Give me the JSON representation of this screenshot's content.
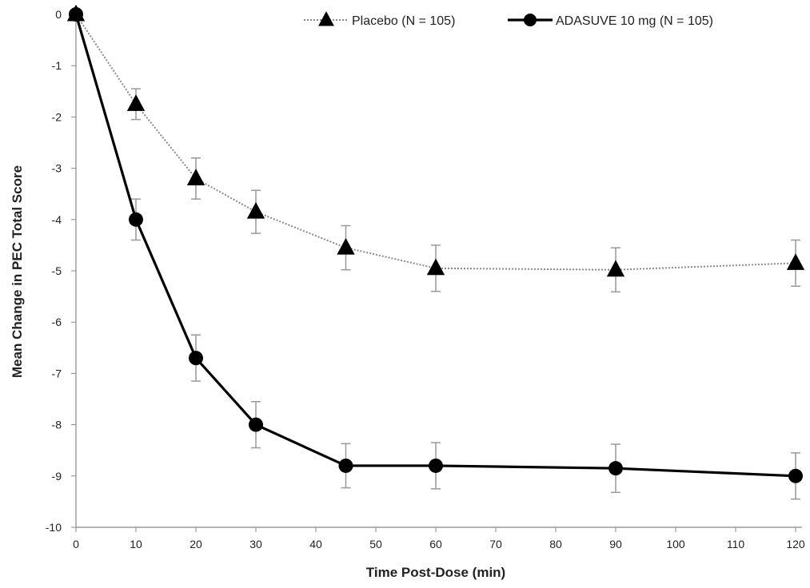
{
  "chart_data": {
    "type": "line",
    "title": "",
    "xlabel": "Time Post-Dose (min)",
    "ylabel": "Mean Change in PEC Total Score",
    "xlim": [
      0,
      120
    ],
    "ylim": [
      -10,
      0
    ],
    "x_ticks": [
      0,
      10,
      20,
      30,
      40,
      50,
      60,
      70,
      80,
      90,
      100,
      110,
      120
    ],
    "y_ticks": [
      0,
      -1,
      -2,
      -3,
      -4,
      -5,
      -6,
      -7,
      -8,
      -9,
      -10
    ],
    "grid": false,
    "legend_position": "top",
    "x": [
      0,
      10,
      20,
      30,
      45,
      60,
      90,
      120
    ],
    "series": [
      {
        "name": "Placebo (N = 105)",
        "marker": "triangle",
        "line_style": "dotted",
        "color": "#9a9a9a",
        "values": [
          0,
          -1.75,
          -3.2,
          -3.85,
          -4.55,
          -4.95,
          -4.98,
          -4.85
        ],
        "error": [
          0,
          0.3,
          0.4,
          0.42,
          0.43,
          0.45,
          0.43,
          0.45
        ]
      },
      {
        "name": "ADASUVE 10 mg (N = 105)",
        "marker": "circle",
        "line_style": "solid",
        "color": "#000000",
        "values": [
          0,
          -4.0,
          -6.7,
          -8.0,
          -8.8,
          -8.8,
          -8.85,
          -9.0
        ],
        "error": [
          0,
          0.4,
          0.45,
          0.45,
          0.43,
          0.45,
          0.47,
          0.45
        ]
      }
    ]
  }
}
